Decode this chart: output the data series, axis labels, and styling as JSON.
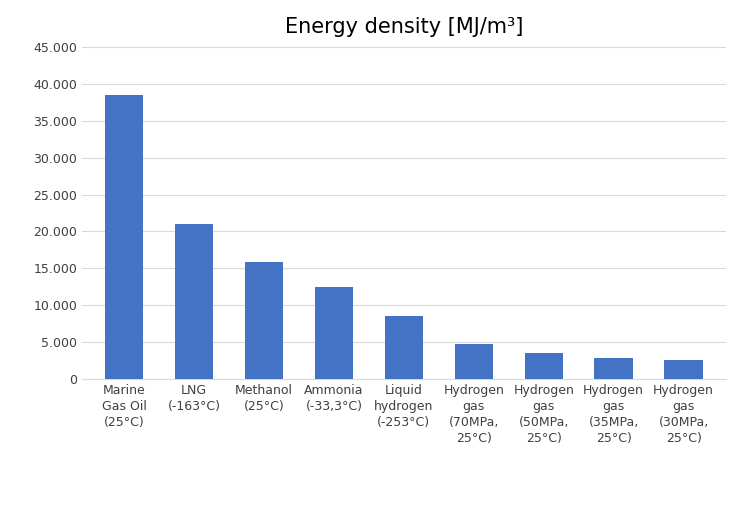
{
  "title": "Energy density [MJ/m³]",
  "categories": [
    "Marine\nGas Oil\n(25°C)",
    "LNG\n(-163°C)",
    "Methanol\n(25°C)",
    "Ammonia\n(-33,3°C)",
    "Liquid\nhydrogen\n(-253°C)",
    "Hydrogen\ngas\n(70MPa,\n25°C)",
    "Hydrogen\ngas\n(50MPa,\n25°C)",
    "Hydrogen\ngas\n(35MPa,\n25°C)",
    "Hydrogen\ngas\n(30MPa,\n25°C)"
  ],
  "values": [
    38500,
    21000,
    15800,
    12500,
    8500,
    4700,
    3500,
    2800,
    2500
  ],
  "bar_color": "#4472C4",
  "ylim": [
    0,
    45000
  ],
  "yticks": [
    0,
    5000,
    10000,
    15000,
    20000,
    25000,
    30000,
    35000,
    40000,
    45000
  ],
  "ytick_labels": [
    "0",
    "5.000",
    "10.000",
    "15.000",
    "20.000",
    "25.000",
    "30.000",
    "35.000",
    "40.000",
    "45.000"
  ],
  "title_fontsize": 15,
  "tick_fontsize": 9,
  "background_color": "#ffffff",
  "grid_color": "#d9d9d9"
}
